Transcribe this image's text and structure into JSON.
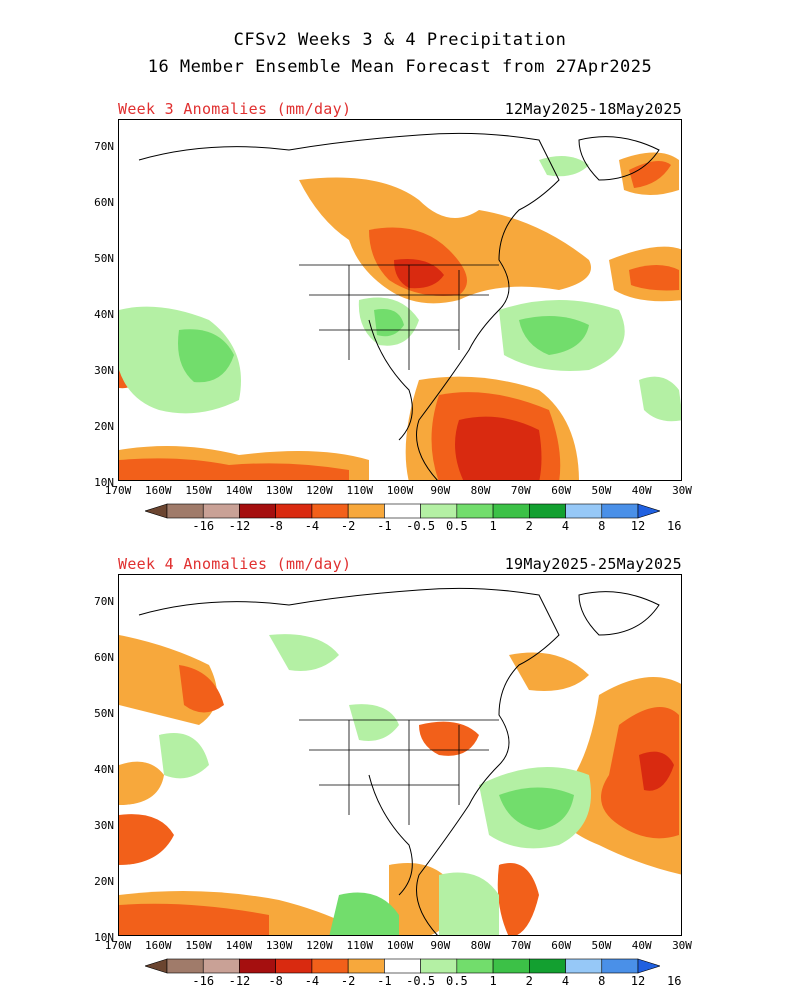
{
  "title_line1": "CFSv2 Weeks 3 & 4 Precipitation",
  "title_line2": "16 Member Ensemble Mean Forecast from 27Apr2025",
  "panels": [
    {
      "label": "Week 3 Anomalies (mm/day)",
      "dates": "12May2025-18May2025"
    },
    {
      "label": "Week 4 Anomalies (mm/day)",
      "dates": "19May2025-25May2025"
    }
  ],
  "lat_labels": [
    "70N",
    "60N",
    "50N",
    "40N",
    "30N",
    "20N",
    "10N"
  ],
  "lon_labels": [
    "170W",
    "160W",
    "150W",
    "140W",
    "130W",
    "120W",
    "110W",
    "100W",
    "90W",
    "80W",
    "70W",
    "60W",
    "50W",
    "40W",
    "30W"
  ],
  "colorbar": {
    "labels": [
      "-16",
      "-12",
      "-8",
      "-4",
      "-2",
      "-1",
      "-0.5",
      "0.5",
      "1",
      "2",
      "4",
      "8",
      "12",
      "16"
    ],
    "colors": [
      "#6b4530",
      "#a07b6a",
      "#c9a196",
      "#a50f0f",
      "#d92a10",
      "#f2601a",
      "#f7a83c",
      "#ffffff",
      "#b4f0a4",
      "#72dd6c",
      "#3cc147",
      "#13a030",
      "#96c8f7",
      "#4a90e8",
      "#2060e0"
    ]
  }
}
